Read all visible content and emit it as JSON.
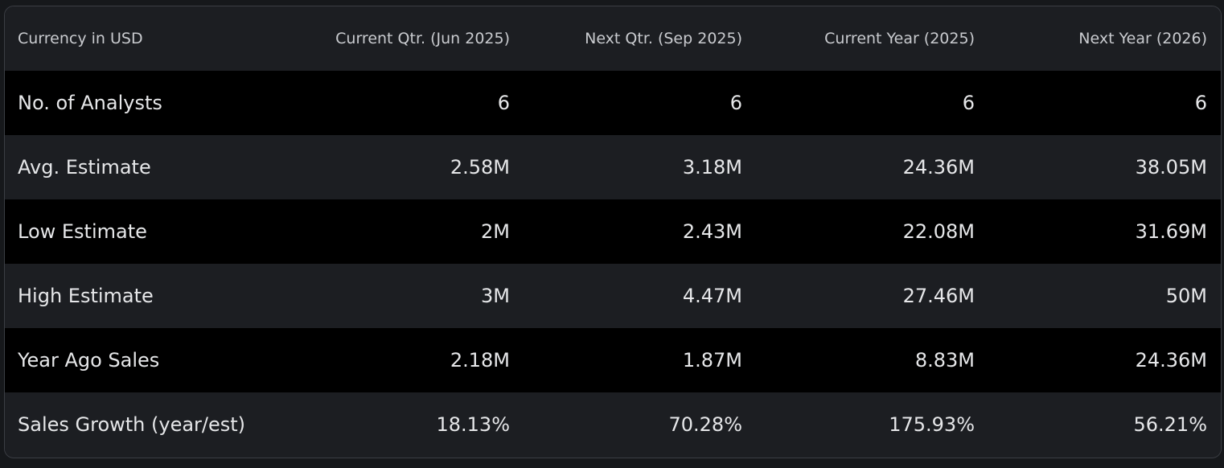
{
  "table": {
    "header": [
      "Currency in USD",
      "Current Qtr. (Jun 2025)",
      "Next Qtr. (Sep 2025)",
      "Current Year (2025)",
      "Next Year (2026)"
    ],
    "rows": [
      [
        "No. of Analysts",
        "6",
        "6",
        "6",
        "6"
      ],
      [
        "Avg. Estimate",
        "2.58M",
        "3.18M",
        "24.36M",
        "38.05M"
      ],
      [
        "Low Estimate",
        "2M",
        "2.43M",
        "22.08M",
        "31.69M"
      ],
      [
        "High Estimate",
        "3M",
        "4.47M",
        "27.46M",
        "50M"
      ],
      [
        "Year Ago Sales",
        "2.18M",
        "1.87M",
        "8.83M",
        "24.36M"
      ],
      [
        "Sales Growth (year/est)",
        "18.13%",
        "70.28%",
        "175.93%",
        "56.21%"
      ]
    ]
  }
}
